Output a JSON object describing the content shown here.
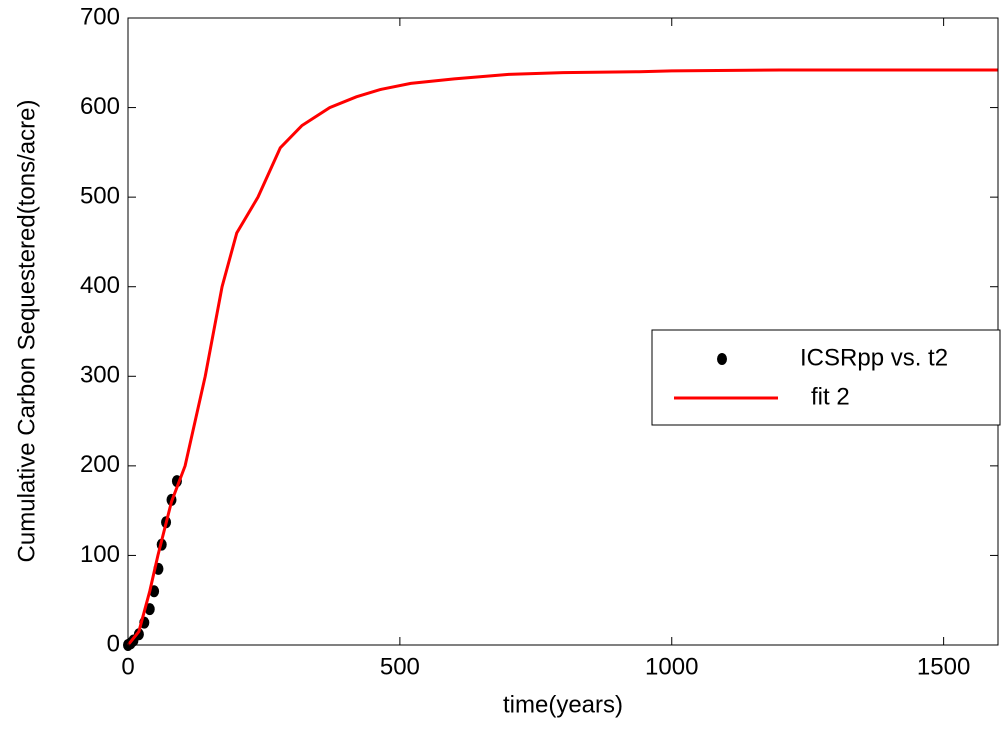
{
  "chart_data": {
    "type": "scatter-line",
    "x_label": "time(years)",
    "y_label": "Cumulative Carbon Sequestered(tons/acre)",
    "xlim": [
      0,
      1600
    ],
    "xticks": [
      0,
      500,
      1000,
      1500
    ],
    "ylim": [
      0,
      700
    ],
    "yticks": [
      0,
      100,
      200,
      300,
      400,
      500,
      600,
      700
    ],
    "legend": "center right",
    "series": [
      {
        "name": "ICSRpp vs. t2",
        "kind": "scatter",
        "color": "#000000",
        "x": [
          0,
          5,
          10,
          20,
          30,
          40,
          48,
          56,
          62,
          70,
          80,
          90
        ],
        "values": [
          0,
          2,
          5,
          12,
          25,
          40,
          60,
          85,
          112,
          137,
          162,
          183
        ]
      },
      {
        "name": "fit 2",
        "kind": "line",
        "color": "#ff0000",
        "x": [
          0,
          20,
          40,
          55,
          80,
          105,
          142,
          173,
          200,
          239,
          280,
          320,
          371,
          420,
          463,
          520,
          600,
          700,
          800,
          940,
          1000,
          1200,
          1400,
          1600
        ],
        "values": [
          0,
          15,
          60,
          100,
          160,
          200,
          300,
          400,
          460,
          500,
          555,
          580,
          600,
          612,
          620,
          627,
          632,
          637,
          639,
          640,
          641,
          642,
          642,
          642
        ]
      }
    ]
  }
}
